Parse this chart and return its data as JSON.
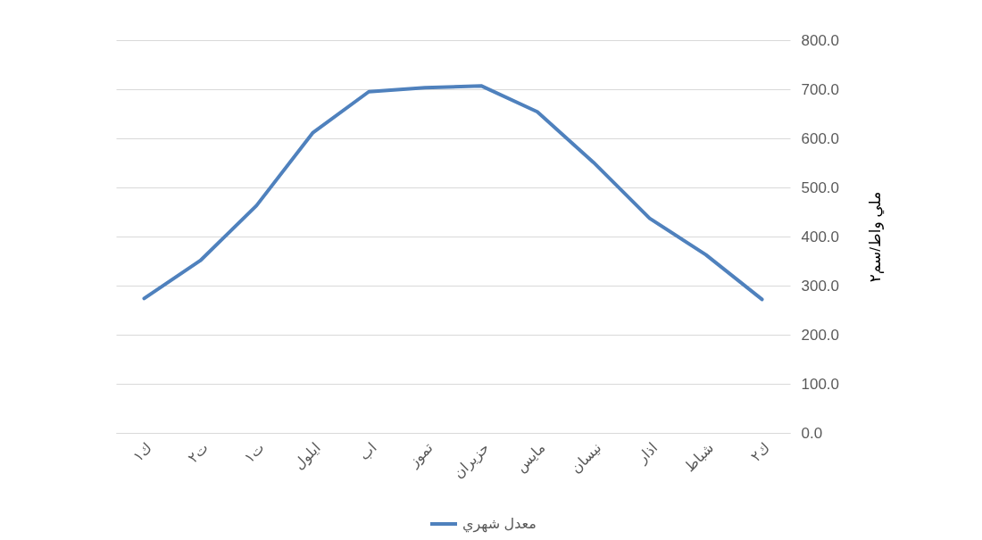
{
  "chart_data": {
    "type": "line",
    "ylabel": "ملي واط/سم٢",
    "categories": [
      "ك١",
      "ت٢",
      "ت١",
      "ايلول",
      "اب",
      "تموز",
      "حزيران",
      "مايس",
      "نيسان",
      "اذار",
      "شباط",
      "ك٢"
    ],
    "series": [
      {
        "name": "معدل شهري",
        "color": "#4f81bd",
        "values": [
          274,
          351,
          463,
          611,
          695,
          703,
          707,
          654,
          551,
          437,
          363,
          272
        ]
      }
    ],
    "ylim": [
      0,
      800
    ],
    "yticks": [
      {
        "value": 0,
        "label": "0.0"
      },
      {
        "value": 100,
        "label": "100.0"
      },
      {
        "value": 200,
        "label": "200.0"
      },
      {
        "value": 300,
        "label": "300.0"
      },
      {
        "value": 400,
        "label": "400.0"
      },
      {
        "value": 500,
        "label": "500.0"
      },
      {
        "value": 600,
        "label": "600.0"
      },
      {
        "value": 700,
        "label": "700.0"
      },
      {
        "value": 800,
        "label": "800.0"
      }
    ],
    "grid": "y",
    "legend": "bottom",
    "marker": "none",
    "line_style": "solid"
  }
}
